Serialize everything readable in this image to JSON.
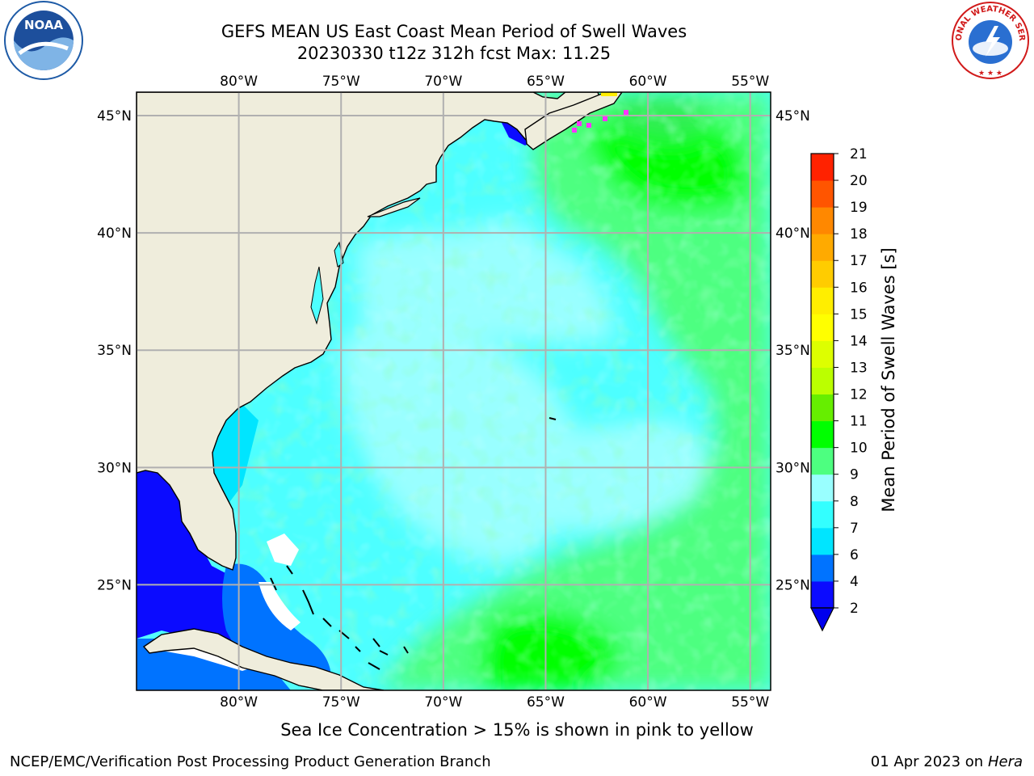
{
  "title": {
    "line1": "GEFS MEAN US East Coast Mean Period of Swell Waves",
    "line2": "20230330 t12z 312h fcst   Max: 11.25"
  },
  "logos": {
    "left": {
      "icon": "noaa-logo",
      "text": "NOAA"
    },
    "right": {
      "icon": "nws-logo",
      "text": "NATIONAL WEATHER SERVICE"
    }
  },
  "map": {
    "projection": "plate-carree",
    "lon_range": [
      -85,
      -54
    ],
    "lat_range": [
      20.5,
      46
    ],
    "lon_ticks": [
      "80°W",
      "75°W",
      "70°W",
      "65°W",
      "60°W",
      "55°W"
    ],
    "lat_ticks": [
      "45°N",
      "40°N",
      "35°N",
      "30°N",
      "25°N"
    ],
    "grid": true,
    "colors": {
      "land": "#efeddc",
      "coast": "#000000",
      "grid": "#b0b0b0",
      "sea_ice": "#ff33ff"
    }
  },
  "colorbar": {
    "label": "Mean Period of Swell Waves [s]",
    "ticks": [
      "2",
      "4",
      "6",
      "7",
      "8",
      "9",
      "10",
      "11",
      "12",
      "13",
      "14",
      "15",
      "16",
      "17",
      "18",
      "19",
      "20",
      "21"
    ],
    "levels": [
      2,
      4,
      6,
      7,
      8,
      9,
      10,
      11,
      12,
      13,
      14,
      15,
      16,
      17,
      18,
      19,
      20,
      21
    ],
    "colors": [
      "#0b0bff",
      "#0073ff",
      "#00e5ff",
      "#33ffff",
      "#99ffff",
      "#4dff80",
      "#00ff00",
      "#66ee00",
      "#bbff00",
      "#ddff00",
      "#ffff00",
      "#ffee00",
      "#ffcc00",
      "#ffaa00",
      "#ff8800",
      "#ff5500",
      "#ff2200",
      "#ff0000"
    ],
    "under_color": "#0000ee",
    "extend": "min"
  },
  "note": "Sea Ice Concentration > 15% is shown in pink to yellow",
  "footer": {
    "left": "NCEP/EMC/Verification Post Processing Product Generation Branch",
    "right_prefix": "01 Apr 2023 on ",
    "right_machine": "Hera"
  }
}
